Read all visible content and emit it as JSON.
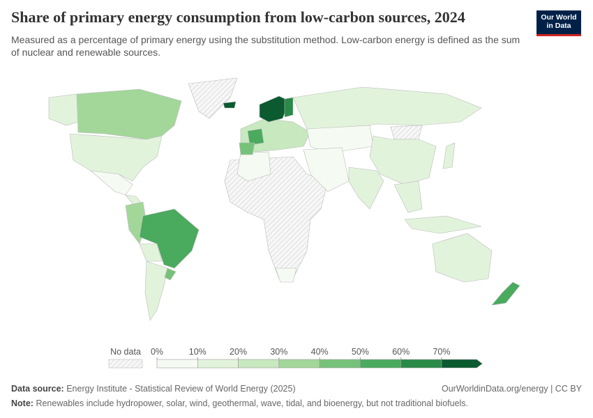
{
  "header": {
    "title": "Share of primary energy consumption from low-carbon sources, 2024",
    "subtitle": "Measured as a percentage of primary energy using the substitution method. Low-carbon energy is defined as the sum of nuclear and renewable sources.",
    "logo": [
      "Our World",
      "in Data"
    ]
  },
  "legend": {
    "no_data": "No data",
    "ticks": [
      {
        "value": 0,
        "label": "0%"
      },
      {
        "value": 10,
        "label": "10%"
      },
      {
        "value": 20,
        "label": "20%"
      },
      {
        "value": 30,
        "label": "30%"
      },
      {
        "value": 40,
        "label": "40%"
      },
      {
        "value": 50,
        "label": "50%"
      },
      {
        "value": 60,
        "label": "60%"
      },
      {
        "value": 70,
        "label": "70%"
      }
    ],
    "colors": [
      "#f5fbf2",
      "#e2f3dc",
      "#c8e8bf",
      "#a3d79a",
      "#77c27a",
      "#4aaa5e",
      "#2a8a47",
      "#0b5a30"
    ]
  },
  "footer": {
    "source_label": "Data source:",
    "source": "Energy Institute - Statistical Review of World Energy (2025)",
    "url": "OurWorldinData.org/energy | CC BY",
    "note_label": "Note:",
    "note": "Renewables include hydropower, solar, wind, geothermal, wave, tidal, and bioenergy, but not traditional biofuels."
  }
}
